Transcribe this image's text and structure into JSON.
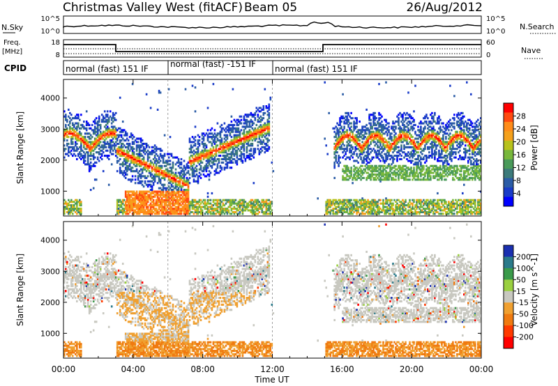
{
  "header": {
    "title": "Christmas Valley West (fitACF)",
    "beam": "Beam 05",
    "date": "26/Aug/2012"
  },
  "top_panels": {
    "nsky_label": "N.Sky",
    "nsky_ticks": [
      "10^5",
      "10^0"
    ],
    "nsearch_label": "N.Search",
    "nsearch_ticks": [
      "10^5",
      "10^0"
    ],
    "freq_label_1": "Freq.",
    "freq_label_2": "[MHz]",
    "freq_ticks": [
      "18",
      "8"
    ],
    "nave_label": "Nave",
    "nave_ticks": [
      "60",
      "0"
    ],
    "cpid_label": "CPID",
    "cpid_segments": [
      {
        "text": "normal (fast) 151 IF",
        "start_h": 0,
        "end_h": 6
      },
      {
        "text": "normal (fast) -151 IF",
        "start_h": 6,
        "end_h": 12
      },
      {
        "text": "normal (fast) 151 IF",
        "start_h": 12,
        "end_h": 24
      }
    ]
  },
  "chart_data": [
    {
      "type": "heatmap",
      "panel": "power",
      "ylabel": "Slant Range [km]",
      "yticks": [
        "1000",
        "2000",
        "3000",
        "4000"
      ],
      "ylim": [
        200,
        4600
      ],
      "colorbar": {
        "label": "Power [dB]",
        "ticks": [
          "28",
          "24",
          "20",
          "16",
          "12",
          "8",
          "4"
        ],
        "colors": [
          "#ff0000",
          "#ff4a10",
          "#ff8c1a",
          "#f5a11c",
          "#b8c21c",
          "#78b83c",
          "#4a9a5a",
          "#3c7a7a",
          "#2b5ca6",
          "#1a3cc8",
          "#0000ff"
        ]
      },
      "features": [
        {
          "name": "arc-early-morning",
          "h": [
            0,
            3
          ],
          "km_center": 2400
        },
        {
          "name": "descending-echoes",
          "h": [
            3,
            7.2
          ],
          "km_center": 1200
        },
        {
          "name": "rising-arc-morning",
          "h": [
            7.5,
            11.5
          ],
          "km_center": 2500
        },
        {
          "name": "afternoon-cusps",
          "h": [
            15.5,
            24
          ],
          "km_center": 2400
        }
      ]
    },
    {
      "type": "heatmap",
      "panel": "velocity",
      "ylabel": "Slant Range [km]",
      "xlabel": "Time UT",
      "yticks": [
        "1000",
        "2000",
        "3000",
        "4000"
      ],
      "ylim": [
        200,
        4600
      ],
      "xticks": [
        "00:00",
        "04:00",
        "08:00",
        "12:00",
        "16:00",
        "20:00",
        "00:00"
      ],
      "xlim_hours": [
        0,
        24
      ],
      "colorbar": {
        "label": "Velocity [m s^-1]",
        "ticks": [
          "200",
          "100",
          "50",
          "15",
          "-15",
          "-50",
          "-100",
          "-200"
        ],
        "colors": [
          "#1a2fb0",
          "#2a7a8a",
          "#3a9a4a",
          "#9ad040",
          "#c8c8c0",
          "#f0a030",
          "#f07a10",
          "#ff3a00",
          "#ff0000"
        ]
      }
    }
  ]
}
